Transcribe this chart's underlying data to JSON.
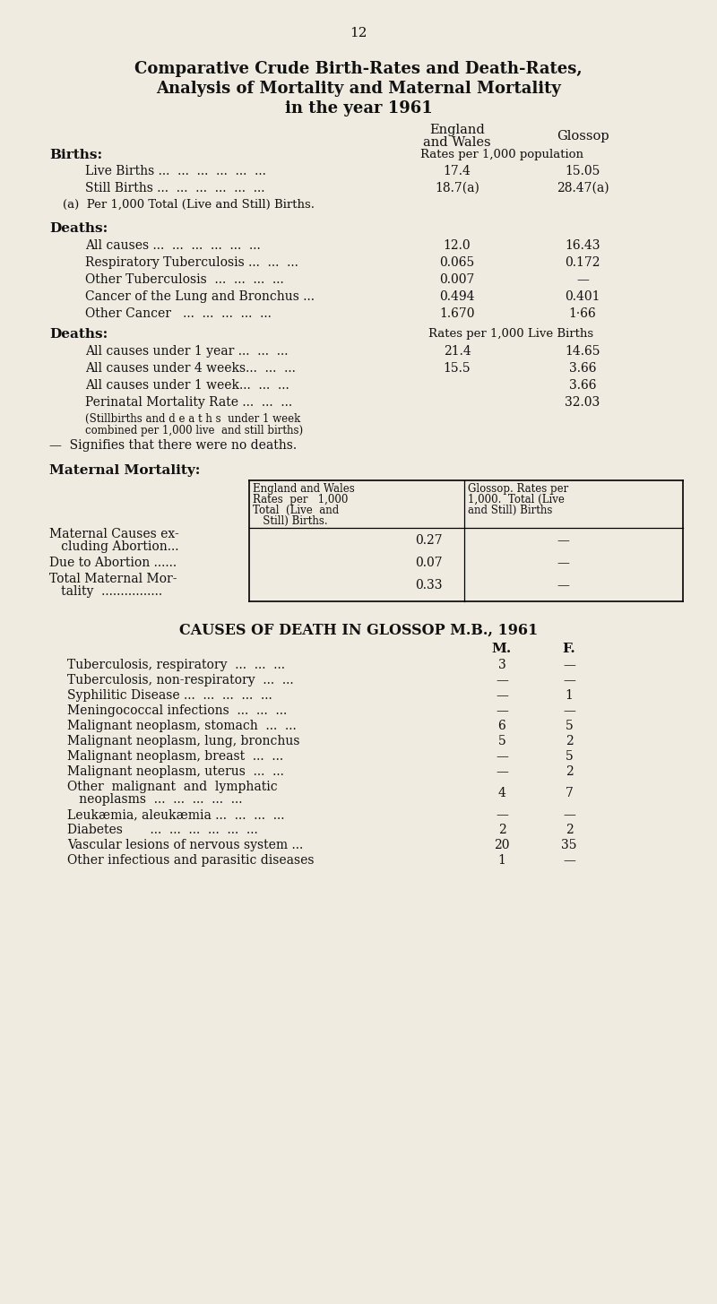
{
  "page_number": "12",
  "title_lines": [
    "Comparative Crude Birth-Rates and Death-Rates,",
    "Analysis of Mortality and Maternal Mortality",
    "in the year 1961"
  ],
  "bg_color": "#f0ebe0",
  "col_subheader_births": "Rates per 1,000 population",
  "col_subheader_deaths2": "Rates per 1,000 Live Births",
  "births_section_label": "Births:",
  "births_rows": [
    {
      "label": "Live Births ...  ...  ...  ...  ...  ...",
      "ew": "17.4",
      "g": "15.05"
    },
    {
      "label": "Still Births ...  ...  ...  ...  ...  ...",
      "ew": "18.7(a)",
      "g": "28.47(a)"
    }
  ],
  "births_footnote": "(a)  Per 1,000 Total (Live and Still) Births.",
  "deaths1_label": "Deaths:",
  "deaths1_rows": [
    {
      "label": "All causes ...  ...  ...  ...  ...  ...",
      "ew": "12.0",
      "g": "16.43"
    },
    {
      "label": "Respiratory Tuberculosis ...  ...  ...",
      "ew": "0.065",
      "g": "0.172"
    },
    {
      "label": "Other Tuberculosis  ...  ...  ...  ...",
      "ew": "0.007",
      "g": "—"
    },
    {
      "label": "Cancer of the Lung and Bronchus ...",
      "ew": "0.494",
      "g": "0.401"
    },
    {
      "label": "Other Cancer   ...  ...  ...  ...  ...",
      "ew": "1.670",
      "g": "1·66"
    }
  ],
  "deaths2_label": "Deaths:",
  "deaths2_rows": [
    {
      "label": "All causes under 1 year ...  ...  ...",
      "ew": "21.4",
      "g": "14.65"
    },
    {
      "label": "All causes under 4 weeks...  ...  ...",
      "ew": "15.5",
      "g": "3.66"
    },
    {
      "label": "All causes under 1 week...  ...  ...",
      "ew": "",
      "g": "3.66"
    },
    {
      "label": "Perinatal Mortality Rate ...  ...  ...",
      "ew": "",
      "g": "32.03"
    }
  ],
  "perinatal_note_line1": "(Stillbirths and d e a t h s  under 1 week",
  "perinatal_note_line2": "combined per 1,000 live  and still births)",
  "signifies_note": "—  Signifies that there were no deaths.",
  "maternal_label": "Maternal Mortality:",
  "maternal_col1_header_lines": [
    "England and Wales",
    "Rates  per   1,000",
    "Total  (Live  and",
    "   Still) Births."
  ],
  "maternal_col2_header_lines": [
    "Glossop. Rates per",
    "1,000.  Total (Live",
    "and Still) Births"
  ],
  "maternal_rows": [
    {
      "label_lines": [
        "Maternal Causes ex-",
        "   cluding Abortion..."
      ],
      "ew": "0.27",
      "g": "—"
    },
    {
      "label_lines": [
        "Due to Abortion ......"
      ],
      "ew": "0.07",
      "g": "—"
    },
    {
      "label_lines": [
        "Total Maternal Mor-",
        "   tality  ................"
      ],
      "ew": "0.33",
      "g": "—"
    }
  ],
  "causes_title": "CAUSES OF DEATH IN GLOSSOP M.B., 1961",
  "causes_col_m": "M.",
  "causes_col_f": "F.",
  "causes_rows": [
    {
      "label_lines": [
        "Tuberculosis, respiratory  ...  ...  ..."
      ],
      "m": "3",
      "f": "—"
    },
    {
      "label_lines": [
        "Tuberculosis, non-respiratory  ...  ..."
      ],
      "m": "—",
      "f": "—"
    },
    {
      "label_lines": [
        "Syphilitic Disease ...  ...  ...  ...  ..."
      ],
      "m": "—",
      "f": "1"
    },
    {
      "label_lines": [
        "Meningococcal infections  ...  ...  ..."
      ],
      "m": "—",
      "f": "—"
    },
    {
      "label_lines": [
        "Malignant neoplasm, stomach  ...  ..."
      ],
      "m": "6",
      "f": "5"
    },
    {
      "label_lines": [
        "Malignant neoplasm, lung, bronchus"
      ],
      "m": "5",
      "f": "2"
    },
    {
      "label_lines": [
        "Malignant neoplasm, breast  ...  ..."
      ],
      "m": "—",
      "f": "5"
    },
    {
      "label_lines": [
        "Malignant neoplasm, uterus  ...  ..."
      ],
      "m": "—",
      "f": "2"
    },
    {
      "label_lines": [
        "Other  malignant  and  lymphatic",
        "   neoplasms  ...  ...  ...  ...  ..."
      ],
      "m": "4",
      "f": "7"
    },
    {
      "label_lines": [
        "Leukæmia, aleukæmia ...  ...  ...  ..."
      ],
      "m": "—",
      "f": "—"
    },
    {
      "label_lines": [
        "Diabetes       ...  ...  ...  ...  ...  ..."
      ],
      "m": "2",
      "f": "2"
    },
    {
      "label_lines": [
        "Vascular lesions of nervous system ..."
      ],
      "m": "20",
      "f": "35"
    },
    {
      "label_lines": [
        "Other infectious and parasitic diseases"
      ],
      "m": "1",
      "f": "—"
    }
  ]
}
